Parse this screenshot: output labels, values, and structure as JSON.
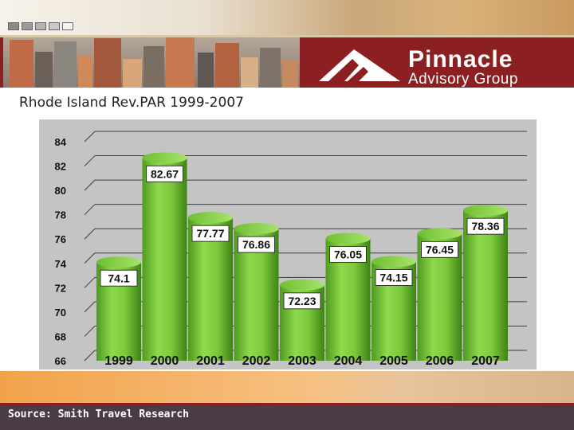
{
  "header": {
    "brand_name": "Pinnacle",
    "brand_sub": "Advisory Group"
  },
  "slide_title": "Rhode Island Rev.PAR 1999-2007",
  "source": "Source: Smith Travel Research",
  "colors": {
    "brand_red": "#8b1f22",
    "bar_green": "#7ac93a",
    "chart_bg": "#c4c4c4"
  },
  "chart_data": {
    "type": "bar",
    "categories": [
      "1999",
      "2000",
      "2001",
      "2002",
      "2003",
      "2004",
      "2005",
      "2006",
      "2007"
    ],
    "values": [
      74.1,
      82.67,
      77.77,
      76.86,
      72.23,
      76.05,
      74.15,
      76.45,
      78.36
    ],
    "value_labels": [
      "74.1",
      "82.67",
      "77.77",
      "76.86",
      "72.23",
      "76.05",
      "74.15",
      "76.45",
      "78.36"
    ],
    "yticks": [
      "66",
      "68",
      "70",
      "72",
      "74",
      "76",
      "78",
      "80",
      "82",
      "84"
    ],
    "ylim": [
      66,
      84
    ],
    "grid": true
  }
}
